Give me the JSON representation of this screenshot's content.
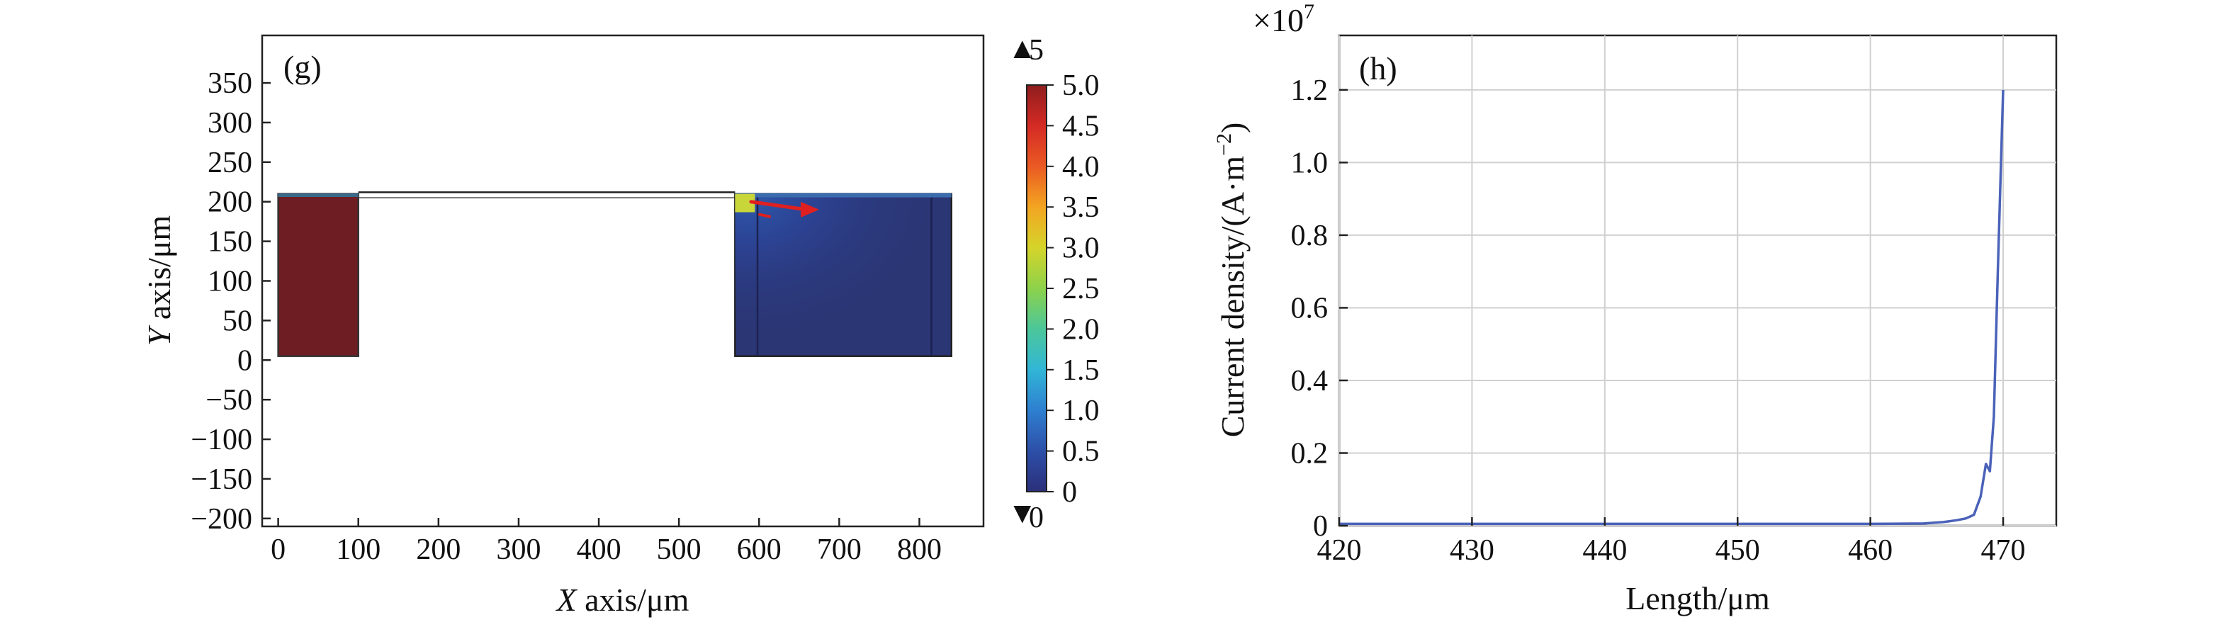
{
  "figure": {
    "panel_g_label": "(g)",
    "panel_h_label": "(h)"
  },
  "chart_data": [
    {
      "type": "heatmap",
      "panel": "(g)",
      "xlabel_italic": "X",
      "xlabel_rest": " axis/μm",
      "ylabel_italic": "Y",
      "ylabel_rest": " axis/μm",
      "xlim": [
        -20,
        880
      ],
      "ylim": [
        -210,
        410
      ],
      "xticks": [
        0,
        100,
        200,
        300,
        400,
        500,
        600,
        700,
        800
      ],
      "xtick_labels": [
        "0",
        "100",
        "200",
        "300",
        "400",
        "500",
        "600",
        "700",
        "800"
      ],
      "yticks": [
        350,
        300,
        250,
        200,
        150,
        100,
        50,
        0,
        -50,
        -100,
        -150,
        -200
      ],
      "ytick_labels": [
        "350",
        "300",
        "250",
        "200",
        "150",
        "100",
        "50",
        "0",
        "−50",
        "−100",
        "−150",
        "−200"
      ],
      "grid": false,
      "colorbar": {
        "max_label": "5",
        "min_label": "0",
        "max_marker": "▲",
        "min_marker": "▼",
        "range": [
          0,
          5
        ],
        "ticks": [
          5.0,
          4.5,
          4.0,
          3.5,
          3.0,
          2.5,
          2.0,
          1.5,
          1.0,
          0.5,
          0
        ],
        "tick_labels": [
          "5.0",
          "4.5",
          "4.0",
          "3.5",
          "3.0",
          "2.5",
          "2.0",
          "1.5",
          "1.0",
          "0.5",
          "0"
        ],
        "colors": [
          "#2b2f7a",
          "#2d4fa8",
          "#2e7fd0",
          "#31b6d6",
          "#4cc79a",
          "#8dd24a",
          "#d5d42a",
          "#f3a521",
          "#ea5a23",
          "#d42a24",
          "#8f1d1e"
        ]
      },
      "regions": [
        {
          "name": "left electrode",
          "x": [
            0,
            100
          ],
          "y": [
            5,
            210
          ],
          "value": 5.0,
          "color": "#6e1d22"
        },
        {
          "name": "connector",
          "x": [
            100,
            570
          ],
          "y": [
            205,
            212
          ],
          "value": 0
        },
        {
          "name": "right block",
          "x": [
            570,
            840
          ],
          "y": [
            5,
            210
          ],
          "value_range": [
            0,
            3.5
          ],
          "color": "#2b3675"
        }
      ],
      "arrow": {
        "from": [
          590,
          200
        ],
        "to": [
          675,
          190
        ],
        "color": "#e02020"
      }
    },
    {
      "type": "line",
      "panel": "(h)",
      "multiplier": "×10",
      "multiplier_exp": "7",
      "xlabel": "Length/μm",
      "ylabel_main": "Current density/(A·m",
      "ylabel_sup": "−2",
      "ylabel_close": ")",
      "xlim": [
        420,
        474
      ],
      "ylim": [
        0,
        1.35
      ],
      "xticks": [
        420,
        430,
        440,
        450,
        460,
        470
      ],
      "xtick_labels": [
        "420",
        "430",
        "440",
        "450",
        "460",
        "470"
      ],
      "yticks": [
        0,
        0.2,
        0.4,
        0.6,
        0.8,
        1.0,
        1.2
      ],
      "ytick_labels": [
        "0",
        "0.2",
        "0.4",
        "0.6",
        "0.8",
        "1.0",
        "1.2"
      ],
      "grid": true,
      "line_color": "#4a62b8",
      "x": [
        420,
        440,
        460,
        464,
        465.5,
        466.5,
        467.2,
        467.8,
        468.3,
        468.7,
        469.0,
        469.3,
        469.6,
        470.0
      ],
      "y": [
        0.005,
        0.005,
        0.005,
        0.006,
        0.01,
        0.015,
        0.02,
        0.03,
        0.08,
        0.17,
        0.15,
        0.3,
        0.7,
        1.2
      ]
    }
  ]
}
